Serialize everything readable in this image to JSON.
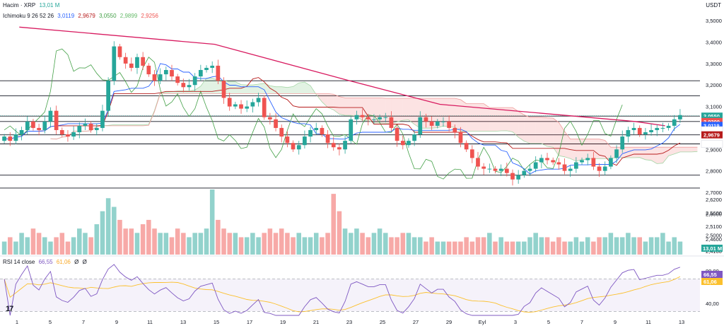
{
  "currency": "USDT",
  "legend": {
    "volume_label": "Hacim · XRP",
    "volume_value": "13,01 M",
    "ichimoku_label": "Ichimoku 9 26 52 26",
    "ichimoku_values": [
      "3,0119",
      "2,9679",
      "3,0550",
      "2,9899",
      "2,9256"
    ],
    "rsi_label": "RSI 14 close",
    "rsi_values": [
      "66,55",
      "61,06",
      "Ø",
      "Ø"
    ]
  },
  "colors": {
    "up": "#26a69a",
    "down": "#ef5350",
    "tenkan": "#2962ff",
    "kijun": "#b71c1c",
    "chikou": "#43a047",
    "span_a": "#a5d6a7",
    "span_b": "#ef9a9a",
    "trend": "#d81b60",
    "rsi": "#7e57c2",
    "rsi_ma": "#fbc02d"
  },
  "chart_data": {
    "type": "candlestick",
    "symbol": "XRP/USDT",
    "price_axis": [
      "3,5000",
      "3,4000",
      "3,3000",
      "3,2000",
      "3,1000",
      "3,0000",
      "2,9000",
      "2,8000",
      "2,7000",
      "2,6000",
      "2,5000",
      "2,4000"
    ],
    "extra_axis_labels": [
      "2,6200",
      "2,5600",
      "2,5100",
      "2,4600",
      "2,4100"
    ],
    "price_range": [
      2.41,
      3.55
    ],
    "date_axis": [
      "1",
      "5",
      "7",
      "9",
      "11",
      "13",
      "15",
      "17",
      "19",
      "21",
      "23",
      "25",
      "27",
      "29",
      "Eyl",
      "3",
      "5",
      "7",
      "9",
      "11",
      "13"
    ],
    "horizontal_levels": [
      3.22,
      3.15,
      3.055,
      3.03,
      2.9679,
      2.9256,
      2.78,
      2.72
    ],
    "price_tags": [
      {
        "label": "3,0550",
        "value": 3.055,
        "color": "#26a69a"
      },
      {
        "label": "3,0550",
        "value": 3.036,
        "color": "#26a69a"
      },
      {
        "label": "3,0300",
        "value": 3.03,
        "color": "#ef5350"
      },
      {
        "label": "3,0119",
        "value": 3.0119,
        "color": "#2962ff"
      },
      {
        "label": "2,9899",
        "value": 2.9899,
        "color": "#ffffff"
      },
      {
        "label": "2,9679",
        "value": 2.9679,
        "color": "#b71c1c"
      },
      {
        "label": "2,9256",
        "value": 2.9256,
        "color": "#ffffff"
      }
    ],
    "trendline": [
      [
        1,
        3.47
      ],
      [
        14,
        3.39
      ],
      [
        23,
        3.22
      ],
      [
        29,
        3.11
      ],
      [
        42,
        3.03
      ],
      [
        44,
        3.01
      ]
    ],
    "closes": [
      2.96,
      2.94,
      2.97,
      2.99,
      3.03,
      3.0,
      2.99,
      3.03,
      3.08,
      2.99,
      2.97,
      2.96,
      2.98,
      3.01,
      3.02,
      2.99,
      3.0,
      3.08,
      3.22,
      3.38,
      3.33,
      3.3,
      3.28,
      3.33,
      3.29,
      3.25,
      3.22,
      3.25,
      3.27,
      3.24,
      3.21,
      3.19,
      3.2,
      3.24,
      3.27,
      3.28,
      3.29,
      3.22,
      3.14,
      3.1,
      3.11,
      3.09,
      3.1,
      3.12,
      3.14,
      3.05,
      3.04,
      3.0,
      2.96,
      2.93,
      2.9,
      2.92,
      2.96,
      2.99,
      3.0,
      2.97,
      2.93,
      2.91,
      2.9,
      2.94,
      3.04,
      3.06,
      3.05,
      3.04,
      3.04,
      3.05,
      3.05,
      3.0,
      2.94,
      2.92,
      2.94,
      2.97,
      3.05,
      3.03,
      3.01,
      3.03,
      3.03,
      3.0,
      2.98,
      2.93,
      2.9,
      2.86,
      2.82,
      2.81,
      2.81,
      2.8,
      2.81,
      2.79,
      2.76,
      2.78,
      2.8,
      2.81,
      2.84,
      2.86,
      2.85,
      2.84,
      2.83,
      2.8,
      2.81,
      2.84,
      2.85,
      2.86,
      2.82,
      2.8,
      2.82,
      2.86,
      2.9,
      2.96,
      2.99,
      3.0,
      2.97,
      2.98,
      2.99,
      3.0,
      3.0,
      3.01,
      3.04,
      3.06
    ],
    "volumes": [
      3,
      4,
      3,
      5,
      4,
      6,
      5,
      4,
      3,
      4,
      5,
      3,
      4,
      6,
      5,
      4,
      7,
      10,
      13,
      11,
      8,
      6,
      6,
      5,
      7,
      8,
      6,
      5,
      5,
      4,
      6,
      5,
      4,
      5,
      5,
      6,
      15,
      8,
      6,
      5,
      5,
      4,
      4,
      5,
      4,
      5,
      6,
      5,
      6,
      5,
      4,
      5,
      4,
      4,
      5,
      4,
      5,
      14,
      10,
      6,
      5,
      6,
      5,
      4,
      5,
      6,
      5,
      4,
      4,
      5,
      5,
      4,
      4,
      3,
      4,
      3,
      3,
      3,
      3,
      3,
      4,
      3,
      4,
      4,
      5,
      3,
      4,
      3,
      3,
      3,
      3,
      4,
      5,
      4,
      4,
      3,
      4,
      3,
      3,
      4,
      3,
      4,
      3,
      4,
      4,
      5,
      4,
      4,
      5,
      4,
      4,
      3,
      4,
      4,
      5,
      3,
      4,
      3
    ],
    "rsi_axis": [
      "80,00",
      "40,00"
    ],
    "rsi_range": [
      25,
      88
    ],
    "rsi_bands": [
      70,
      30
    ]
  }
}
